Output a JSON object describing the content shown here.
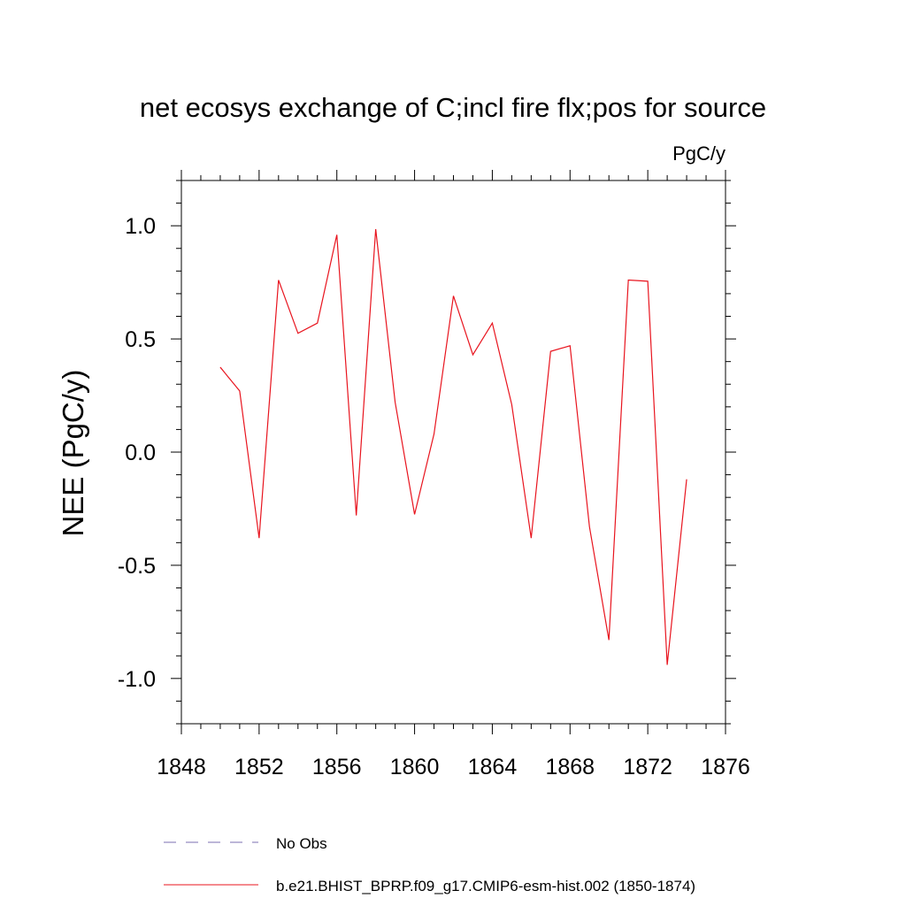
{
  "chart_data": {
    "type": "line",
    "title": "net ecosys exchange of C;incl fire flx;pos for source",
    "units_label": "PgC/y",
    "ylabel": "NEE  (PgC/y)",
    "xlabel": "",
    "xlim": [
      1848,
      1876
    ],
    "ylim": [
      -1.2,
      1.2
    ],
    "x_ticks": [
      1848,
      1852,
      1856,
      1860,
      1864,
      1868,
      1872,
      1876
    ],
    "x_tick_labels": [
      "1848",
      "1852",
      "1856",
      "1860",
      "1864",
      "1868",
      "1872",
      "1876"
    ],
    "y_ticks": [
      -1.0,
      -0.5,
      0.0,
      0.5,
      1.0
    ],
    "y_tick_labels": [
      "-1.0",
      "-0.5",
      "0.0",
      "0.5",
      "1.0"
    ],
    "grid": false,
    "legend_position": "bottom",
    "series": [
      {
        "name": "b.e21.BHIST_BPRP.f09_g17.CMIP6-esm-hist.002 (1850-1874)",
        "color": "#e8141e",
        "style": "solid",
        "x": [
          1850,
          1851,
          1852,
          1853,
          1854,
          1855,
          1856,
          1857,
          1858,
          1859,
          1860,
          1861,
          1862,
          1863,
          1864,
          1865,
          1866,
          1867,
          1868,
          1869,
          1870,
          1871,
          1872,
          1873,
          1874
        ],
        "y": [
          0.375,
          0.27,
          -0.38,
          0.76,
          0.525,
          0.57,
          0.96,
          -0.28,
          0.985,
          0.22,
          -0.275,
          0.08,
          0.69,
          0.43,
          0.57,
          0.21,
          -0.38,
          0.445,
          0.47,
          -0.33,
          -0.83,
          0.76,
          0.755,
          -0.94,
          -0.12
        ]
      }
    ],
    "legend": [
      {
        "label": "No Obs",
        "color": "#7b6fb0",
        "style": "dashed"
      },
      {
        "label": "b.e21.BHIST_BPRP.f09_g17.CMIP6-esm-hist.002 (1850-1874)",
        "color": "#e8141e",
        "style": "solid"
      }
    ]
  }
}
